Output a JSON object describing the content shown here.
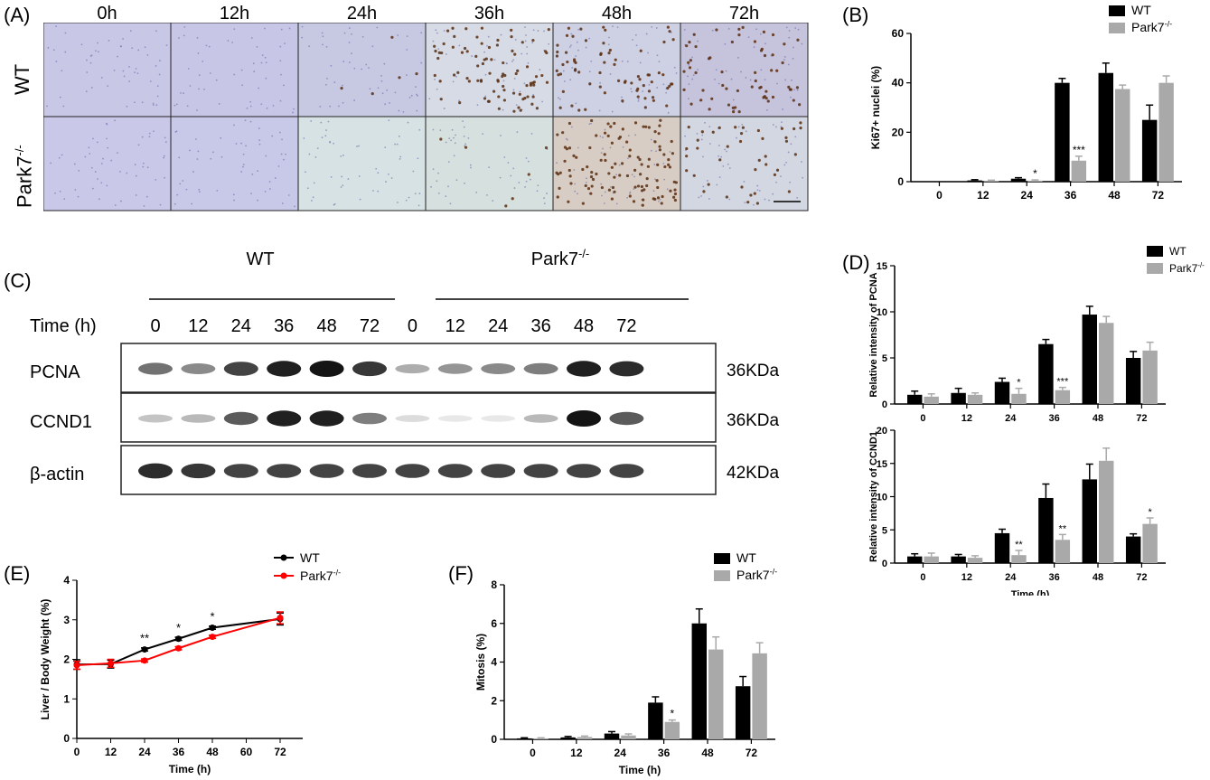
{
  "panels": {
    "A": {
      "label": "(A)",
      "columns": [
        "0h",
        "12h",
        "24h",
        "36h",
        "48h",
        "72h"
      ],
      "rows": [
        "WT",
        "Park7"
      ],
      "row_superscript": "-/-",
      "tissue_colors": {
        "wt": [
          "#c9c7e6",
          "#c8c6e6",
          "#c7c9e3",
          "#d6dbe6",
          "#cdd1e3",
          "#c6c3dc"
        ],
        "ko": [
          "#c9c8e8",
          "#c8c8e8",
          "#d6e2e3",
          "#d6e0df",
          "#d8cdc4",
          "#d2d7e2"
        ]
      },
      "stained_cells": {
        "wt": [
          0,
          0,
          5,
          85,
          70,
          60
        ],
        "ko": [
          0,
          0,
          0,
          6,
          110,
          40
        ]
      }
    },
    "B": {
      "label": "(B)",
      "chart_data": {
        "type": "bar",
        "categories": [
          "0",
          "12",
          "24",
          "36",
          "48",
          "72"
        ],
        "series": [
          {
            "name": "WT",
            "values": [
              0,
              0.5,
              1.2,
              40,
              44,
              25
            ],
            "errors": [
              0,
              0.3,
              0.4,
              1.8,
              4,
              6
            ]
          },
          {
            "name": "Park7",
            "values": [
              0,
              0.3,
              0.4,
              8.5,
              37.5,
              40
            ],
            "errors": [
              0,
              0.3,
              0.3,
              1.8,
              1.6,
              2.8
            ]
          }
        ],
        "name_superscript": "-/-",
        "ylabel": "Ki67+ nuclei (%)",
        "xlabel": "Time (h)",
        "ylim": [
          0,
          60
        ],
        "yticks": [
          "0",
          "20",
          "40",
          "60"
        ],
        "significance": [
          {
            "index": 2,
            "text": "*"
          },
          {
            "index": 3,
            "text": "***"
          }
        ],
        "colors": [
          "#000000",
          "#a9a9a9"
        ]
      }
    },
    "C": {
      "label": "(C)",
      "group_wt": "WT",
      "group_ko": "Park7",
      "group_ko_sup": "-/-",
      "time_label": "Time (h)",
      "times": [
        "0",
        "12",
        "24",
        "36",
        "48",
        "72",
        "0",
        "12",
        "24",
        "36",
        "48",
        "72"
      ],
      "bands": [
        {
          "name": "PCNA",
          "size": "36KDa",
          "intensity": [
            0.6,
            0.5,
            0.8,
            0.95,
            1.0,
            0.85,
            0.35,
            0.45,
            0.5,
            0.55,
            0.95,
            0.9
          ]
        },
        {
          "name": "CCND1",
          "size": "36KDa",
          "intensity": [
            0.25,
            0.3,
            0.7,
            0.95,
            0.95,
            0.55,
            0.15,
            0.1,
            0.1,
            0.3,
            1.0,
            0.7
          ]
        },
        {
          "name": "β-actin",
          "size": "42KDa",
          "intensity": [
            0.9,
            0.85,
            0.8,
            0.8,
            0.8,
            0.8,
            0.8,
            0.8,
            0.8,
            0.8,
            0.8,
            0.8
          ]
        }
      ]
    },
    "D": {
      "label": "(D)",
      "legend": [
        "WT",
        "Park7"
      ],
      "legend_sup": "-/-",
      "charts": [
        {
          "type": "bar",
          "categories": [
            "0",
            "12",
            "24",
            "36",
            "48",
            "72"
          ],
          "series": [
            {
              "name": "WT",
              "values": [
                1,
                1.2,
                2.4,
                6.5,
                9.7,
                5
              ],
              "errors": [
                0.4,
                0.5,
                0.4,
                0.5,
                0.9,
                0.7
              ]
            },
            {
              "name": "Park7",
              "values": [
                0.8,
                1,
                1.1,
                1.5,
                8.8,
                5.8
              ],
              "errors": [
                0.3,
                0.2,
                0.6,
                0.3,
                0.7,
                0.9
              ]
            }
          ],
          "ylabel": "Relative intensity of PCNA",
          "xlabel": "",
          "ylim": [
            0,
            15
          ],
          "yticks": [
            "0",
            "5",
            "10",
            "15"
          ],
          "significance": [
            {
              "index": 2,
              "text": "*"
            },
            {
              "index": 3,
              "text": "***"
            }
          ]
        },
        {
          "type": "bar",
          "categories": [
            "0",
            "12",
            "24",
            "36",
            "48",
            "72"
          ],
          "series": [
            {
              "name": "WT",
              "values": [
                1,
                1,
                4.5,
                9.8,
                12.6,
                4
              ],
              "errors": [
                0.4,
                0.3,
                0.6,
                2.1,
                2.3,
                0.4
              ]
            },
            {
              "name": "Park7",
              "values": [
                1,
                0.8,
                1.2,
                3.5,
                15.4,
                5.9
              ],
              "errors": [
                0.5,
                0.3,
                0.7,
                0.8,
                1.9,
                0.9
              ]
            }
          ],
          "ylabel": "Relative intensity of CCND1",
          "xlabel": "Time (h)",
          "ylim": [
            0,
            20
          ],
          "yticks": [
            "0",
            "5",
            "10",
            "15",
            "20"
          ],
          "significance": [
            {
              "index": 2,
              "text": "**"
            },
            {
              "index": 3,
              "text": "**"
            },
            {
              "index": 5,
              "text": "*"
            }
          ]
        }
      ]
    },
    "E": {
      "label": "(E)",
      "chart_data": {
        "type": "line",
        "x": [
          0,
          12,
          24,
          36,
          48,
          72
        ],
        "series": [
          {
            "name": "WT",
            "values": [
              1.87,
              1.88,
              2.25,
              2.52,
              2.8,
              3.02
            ],
            "errors": [
              0.12,
              0.1,
              0.04,
              0.04,
              0.04,
              0.15
            ],
            "color": "#000000"
          },
          {
            "name": "Park7",
            "values": [
              1.85,
              1.9,
              1.97,
              2.28,
              2.57,
              3.05
            ],
            "errors": [
              0.1,
              0.1,
              0.04,
              0.04,
              0.04,
              0.15
            ],
            "color": "#ff0000"
          }
        ],
        "name_superscript": "-/-",
        "ylabel": "Liver / Body Weight (%)",
        "xlabel": "Time (h)",
        "xlim": [
          0,
          80
        ],
        "ylim": [
          0,
          4
        ],
        "xticks": [
          "0",
          "12",
          "24",
          "36",
          "48",
          "60",
          "72"
        ],
        "yticks": [
          "0",
          "1",
          "2",
          "3",
          "4"
        ],
        "significance": [
          {
            "x": 24,
            "text": "**"
          },
          {
            "x": 36,
            "text": "*"
          },
          {
            "x": 48,
            "text": "*"
          }
        ]
      }
    },
    "F": {
      "label": "(F)",
      "chart_data": {
        "type": "bar",
        "categories": [
          "0",
          "12",
          "24",
          "36",
          "48",
          "72"
        ],
        "series": [
          {
            "name": "WT",
            "values": [
              0.05,
              0.1,
              0.3,
              1.9,
              6,
              2.75
            ],
            "errors": [
              0.03,
              0.05,
              0.1,
              0.3,
              0.75,
              0.5
            ]
          },
          {
            "name": "Park7",
            "values": [
              0.05,
              0.12,
              0.2,
              0.9,
              4.65,
              4.45
            ],
            "errors": [
              0.03,
              0.05,
              0.08,
              0.1,
              0.65,
              0.55
            ]
          }
        ],
        "name_superscript": "-/-",
        "ylabel": "Mitosis (%)",
        "xlabel": "Time (h)",
        "ylim": [
          0,
          8
        ],
        "yticks": [
          "0",
          "2",
          "4",
          "6",
          "8"
        ],
        "significance": [
          {
            "index": 3,
            "text": "*"
          }
        ]
      }
    }
  }
}
